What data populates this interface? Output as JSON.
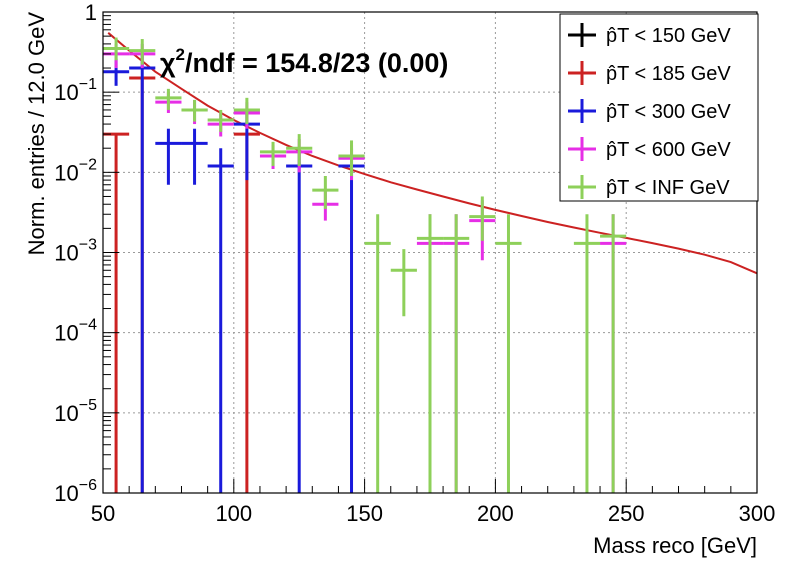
{
  "chart_data": {
    "type": "scatter",
    "xlabel": "Mass reco [GeV]",
    "ylabel": "Norm. entries / 12.0 GeV",
    "xlim": [
      50,
      300
    ],
    "ylim": [
      1e-06,
      1
    ],
    "ylog": true,
    "grid": true,
    "legend_position": "top-right",
    "x_ticks": [
      "50",
      "100",
      "150",
      "200",
      "250",
      "300"
    ],
    "y_ticks": [
      {
        "base": "1",
        "exp": ""
      },
      {
        "base": "10",
        "exp": "−1"
      },
      {
        "base": "10",
        "exp": "−2"
      },
      {
        "base": "10",
        "exp": "−3"
      },
      {
        "base": "10",
        "exp": "−4"
      },
      {
        "base": "10",
        "exp": "−5"
      },
      {
        "base": "10",
        "exp": "−6"
      }
    ],
    "annotation": {
      "prefix": "χ",
      "sup": "2",
      "text": "/ndf = 154.8/23 (0.00)"
    },
    "series": [
      {
        "name": "p̂T < 150 GeV",
        "color": "#000000",
        "points": []
      },
      {
        "name": "p̂T < 185 GeV",
        "color": "#cc2222",
        "points": [
          {
            "x": 55,
            "y": 0.03,
            "ylo": 1e-06,
            "yhi": 0.03
          },
          {
            "x": 65,
            "y": 0.15,
            "ylo": 1e-06,
            "yhi": 0.15
          },
          {
            "x": 105,
            "y": 0.03,
            "ylo": 1e-06,
            "yhi": 0.03
          }
        ]
      },
      {
        "name": "p̂T < 300 GeV",
        "color": "#1a1adb",
        "points": [
          {
            "x": 55,
            "y": 0.18,
            "ylo": 0.12,
            "yhi": 0.26
          },
          {
            "x": 65,
            "y": 0.2,
            "ylo": 1e-06,
            "yhi": 0.3
          },
          {
            "x": 75,
            "y": 0.023,
            "ylo": 0.007,
            "yhi": 0.035
          },
          {
            "x": 85,
            "y": 0.023,
            "ylo": 0.007,
            "yhi": 0.035
          },
          {
            "x": 95,
            "y": 0.012,
            "ylo": 1e-06,
            "yhi": 0.02
          },
          {
            "x": 105,
            "y": 0.04,
            "ylo": 0.008,
            "yhi": 0.06
          },
          {
            "x": 125,
            "y": 0.012,
            "ylo": 1e-06,
            "yhi": 0.02
          },
          {
            "x": 145,
            "y": 0.012,
            "ylo": 1e-06,
            "yhi": 0.02
          }
        ]
      },
      {
        "name": "p̂T < 600 GeV",
        "color": "#e62ee6",
        "points": [
          {
            "x": 55,
            "y": 0.3,
            "ylo": 0.2,
            "yhi": 0.4
          },
          {
            "x": 65,
            "y": 0.3,
            "ylo": 0.2,
            "yhi": 0.4
          },
          {
            "x": 75,
            "y": 0.075,
            "ylo": 0.055,
            "yhi": 0.1
          },
          {
            "x": 85,
            "y": 0.06,
            "ylo": 0.04,
            "yhi": 0.08
          },
          {
            "x": 95,
            "y": 0.04,
            "ylo": 0.028,
            "yhi": 0.055
          },
          {
            "x": 105,
            "y": 0.055,
            "ylo": 0.035,
            "yhi": 0.075
          },
          {
            "x": 115,
            "y": 0.016,
            "ylo": 0.011,
            "yhi": 0.022
          },
          {
            "x": 125,
            "y": 0.018,
            "ylo": 0.01,
            "yhi": 0.026
          },
          {
            "x": 135,
            "y": 0.004,
            "ylo": 0.0025,
            "yhi": 0.006
          },
          {
            "x": 145,
            "y": 0.015,
            "ylo": 0.008,
            "yhi": 0.022
          },
          {
            "x": 175,
            "y": 0.0013,
            "ylo": 1e-06,
            "yhi": 0.003
          },
          {
            "x": 185,
            "y": 0.0013,
            "ylo": 1e-06,
            "yhi": 0.003
          },
          {
            "x": 195,
            "y": 0.0025,
            "ylo": 0.0008,
            "yhi": 0.0045
          },
          {
            "x": 245,
            "y": 0.0013,
            "ylo": 1e-06,
            "yhi": 0.003
          }
        ]
      },
      {
        "name": "p̂T < INF GeV",
        "color": "#8ed05a",
        "points": [
          {
            "x": 55,
            "y": 0.35,
            "ylo": 0.25,
            "yhi": 0.48
          },
          {
            "x": 65,
            "y": 0.33,
            "ylo": 0.22,
            "yhi": 0.46
          },
          {
            "x": 75,
            "y": 0.085,
            "ylo": 0.06,
            "yhi": 0.11
          },
          {
            "x": 85,
            "y": 0.06,
            "ylo": 0.043,
            "yhi": 0.08
          },
          {
            "x": 95,
            "y": 0.045,
            "ylo": 0.032,
            "yhi": 0.06
          },
          {
            "x": 105,
            "y": 0.06,
            "ylo": 0.04,
            "yhi": 0.085
          },
          {
            "x": 115,
            "y": 0.018,
            "ylo": 0.012,
            "yhi": 0.024
          },
          {
            "x": 125,
            "y": 0.02,
            "ylo": 0.012,
            "yhi": 0.03
          },
          {
            "x": 135,
            "y": 0.006,
            "ylo": 0.0035,
            "yhi": 0.009
          },
          {
            "x": 145,
            "y": 0.016,
            "ylo": 0.009,
            "yhi": 0.025
          },
          {
            "x": 155,
            "y": 0.0013,
            "ylo": 1e-06,
            "yhi": 0.003
          },
          {
            "x": 165,
            "y": 0.0006,
            "ylo": 0.00016,
            "yhi": 0.0011
          },
          {
            "x": 175,
            "y": 0.0015,
            "ylo": 1e-06,
            "yhi": 0.003
          },
          {
            "x": 185,
            "y": 0.0015,
            "ylo": 1e-06,
            "yhi": 0.003
          },
          {
            "x": 195,
            "y": 0.0028,
            "ylo": 0.0014,
            "yhi": 0.005
          },
          {
            "x": 205,
            "y": 0.0013,
            "ylo": 1e-06,
            "yhi": 0.003
          },
          {
            "x": 235,
            "y": 0.0013,
            "ylo": 1e-06,
            "yhi": 0.003
          },
          {
            "x": 245,
            "y": 0.0016,
            "ylo": 1e-06,
            "yhi": 0.003
          }
        ]
      }
    ],
    "fit_curve": {
      "color": "#cc2222",
      "x": [
        52,
        60,
        70,
        80,
        90,
        100,
        110,
        120,
        130,
        140,
        150,
        160,
        170,
        180,
        190,
        200,
        210,
        220,
        230,
        240,
        250,
        260,
        270,
        280,
        290,
        300
      ],
      "y": [
        0.55,
        0.33,
        0.18,
        0.11,
        0.068,
        0.045,
        0.031,
        0.022,
        0.016,
        0.0122,
        0.0095,
        0.0075,
        0.0061,
        0.005,
        0.0041,
        0.0034,
        0.00285,
        0.0024,
        0.00205,
        0.00176,
        0.00152,
        0.00131,
        0.00112,
        0.00094,
        0.00076,
        0.00055
      ]
    }
  }
}
